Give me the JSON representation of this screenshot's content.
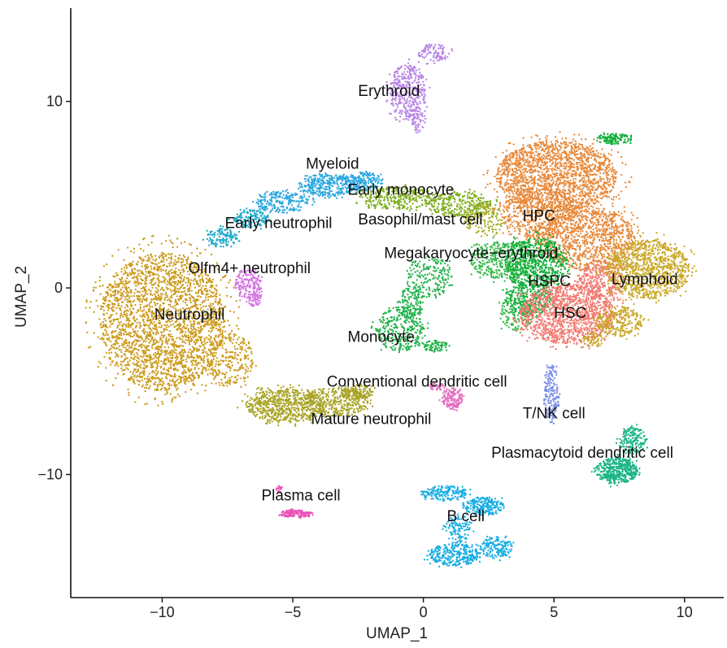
{
  "chart_data": {
    "type": "scatter",
    "title": "",
    "xlabel": "UMAP_1",
    "ylabel": "UMAP_2",
    "xlim": [
      -13.5,
      11.5
    ],
    "ylim": [
      -16.6,
      15.0
    ],
    "xticks": [
      -10,
      -5,
      0,
      5,
      10
    ],
    "xtick_labels": [
      "−10",
      "−5",
      "0",
      "5",
      "10"
    ],
    "yticks": [
      -10,
      0,
      10
    ],
    "ytick_labels": [
      "−10",
      "0",
      "10"
    ],
    "grid": false,
    "legend": "none",
    "clusters": [
      {
        "label": "Neutrophil",
        "color": "#CC9A1C",
        "label_x": -10.3,
        "label_y": -1.7,
        "regions": [
          {
            "cx": -10.0,
            "cy": -1.8,
            "rx": 2.4,
            "ry": 3.7,
            "n": 2600
          },
          {
            "cx": -7.4,
            "cy": -3.8,
            "rx": 0.9,
            "ry": 1.5,
            "n": 260
          }
        ]
      },
      {
        "label": "Mature neutrophil",
        "color": "#A9A427",
        "label_x": -4.3,
        "label_y": -7.3,
        "regions": [
          {
            "cx": -5.3,
            "cy": -6.3,
            "rx": 1.5,
            "ry": 0.9,
            "n": 650
          },
          {
            "cx": -3.3,
            "cy": -6.1,
            "rx": 1.2,
            "ry": 0.8,
            "n": 400
          },
          {
            "cx": -2.5,
            "cy": -5.6,
            "rx": 0.6,
            "ry": 0.4,
            "n": 120
          }
        ]
      },
      {
        "label": "Early neutrophil",
        "color": "#1FA9C9",
        "label_x": -7.6,
        "label_y": 3.2,
        "regions": [
          {
            "cx": -7.7,
            "cy": 2.7,
            "rx": 0.6,
            "ry": 0.5,
            "n": 120
          },
          {
            "cx": -6.6,
            "cy": 3.7,
            "rx": 0.7,
            "ry": 0.5,
            "n": 160
          }
        ]
      },
      {
        "label": "Myeloid",
        "color": "#2AA7E0",
        "label_x": -4.5,
        "label_y": 6.4,
        "regions": [
          {
            "cx": -5.4,
            "cy": 4.6,
            "rx": 1.0,
            "ry": 0.6,
            "n": 220
          },
          {
            "cx": -3.7,
            "cy": 5.5,
            "rx": 1.1,
            "ry": 0.6,
            "n": 320
          },
          {
            "cx": -2.3,
            "cy": 5.7,
            "rx": 0.8,
            "ry": 0.5,
            "n": 200
          }
        ]
      },
      {
        "label": "Erythroid",
        "color": "#B784E6",
        "label_x": -2.5,
        "label_y": 10.3,
        "regions": [
          {
            "cx": -0.6,
            "cy": 10.5,
            "rx": 0.7,
            "ry": 1.5,
            "n": 380
          },
          {
            "cx": 0.4,
            "cy": 12.6,
            "rx": 0.6,
            "ry": 0.5,
            "n": 100
          },
          {
            "cx": -0.2,
            "cy": 9.0,
            "rx": 0.3,
            "ry": 0.7,
            "n": 60
          }
        ]
      },
      {
        "label": "Early monocyte",
        "color": "#7DAE1B",
        "label_x": -2.9,
        "label_y": 5.0,
        "regions": [
          {
            "cx": -1.0,
            "cy": 4.8,
            "rx": 1.4,
            "ry": 0.6,
            "n": 300
          },
          {
            "cx": 1.4,
            "cy": 4.5,
            "rx": 1.2,
            "ry": 0.7,
            "n": 280
          }
        ]
      },
      {
        "label": "Basophil/mast cell",
        "color": "#A4AB22",
        "label_x": -2.5,
        "label_y": 3.4,
        "regions": [
          {
            "cx": 2.3,
            "cy": 3.7,
            "rx": 0.8,
            "ry": 0.8,
            "n": 160
          }
        ]
      },
      {
        "label": "Megakaryocyte−erythroid",
        "color": "#37B94A",
        "label_x": -1.5,
        "label_y": 1.6,
        "regions": [
          {
            "cx": 3.0,
            "cy": 1.5,
            "rx": 1.2,
            "ry": 1.0,
            "n": 400
          },
          {
            "cx": 3.6,
            "cy": -1.3,
            "rx": 0.7,
            "ry": 1.0,
            "n": 150
          }
        ]
      },
      {
        "label": "Monocyte",
        "color": "#22B24B",
        "label_x": -2.9,
        "label_y": -2.9,
        "regions": [
          {
            "cx": -0.9,
            "cy": -2.2,
            "rx": 0.9,
            "ry": 1.2,
            "n": 320
          },
          {
            "cx": 0.2,
            "cy": 0.6,
            "rx": 0.9,
            "ry": 1.1,
            "n": 200
          },
          {
            "cx": -0.5,
            "cy": -0.8,
            "rx": 0.5,
            "ry": 0.8,
            "n": 120
          },
          {
            "cx": 0.5,
            "cy": -3.1,
            "rx": 0.5,
            "ry": 0.3,
            "n": 80
          }
        ]
      },
      {
        "label": "HPC",
        "color": "#E8893A",
        "label_x": 3.8,
        "label_y": 3.6,
        "regions": [
          {
            "cx": 5.1,
            "cy": 6.0,
            "rx": 2.3,
            "ry": 1.9,
            "n": 1800
          },
          {
            "cx": 6.2,
            "cy": 2.7,
            "rx": 1.9,
            "ry": 1.7,
            "n": 1100
          },
          {
            "cx": 4.4,
            "cy": 4.0,
            "rx": 1.4,
            "ry": 1.4,
            "n": 500
          }
        ]
      },
      {
        "label": "HSPC",
        "color": "#12AE3A",
        "label_x": 4.0,
        "label_y": 0.1,
        "regions": [
          {
            "cx": 4.3,
            "cy": 1.3,
            "rx": 1.2,
            "ry": 1.4,
            "n": 650
          },
          {
            "cx": 4.0,
            "cy": -0.6,
            "rx": 0.9,
            "ry": 0.9,
            "n": 260
          },
          {
            "cx": 7.3,
            "cy": 8.0,
            "rx": 0.7,
            "ry": 0.3,
            "n": 120
          }
        ]
      },
      {
        "label": "HSC",
        "color": "#F27A70",
        "label_x": 5.0,
        "label_y": -1.6,
        "regions": [
          {
            "cx": 5.5,
            "cy": -1.4,
            "rx": 1.8,
            "ry": 1.6,
            "n": 1300
          },
          {
            "cx": 6.8,
            "cy": 0.4,
            "rx": 0.9,
            "ry": 1.0,
            "n": 300
          }
        ]
      },
      {
        "label": "Lymphoid",
        "color": "#C9A826",
        "label_x": 7.2,
        "label_y": 0.2,
        "regions": [
          {
            "cx": 8.6,
            "cy": 1.0,
            "rx": 1.6,
            "ry": 1.6,
            "n": 1000
          },
          {
            "cx": 7.5,
            "cy": -1.8,
            "rx": 0.9,
            "ry": 0.8,
            "n": 260
          },
          {
            "cx": 6.5,
            "cy": -2.8,
            "rx": 0.4,
            "ry": 0.4,
            "n": 60
          }
        ]
      },
      {
        "label": "Olfm4+ neutrophil",
        "color": "#D374E0",
        "label_x": -9.0,
        "label_y": 0.8,
        "regions": [
          {
            "cx": -6.7,
            "cy": 0.2,
            "rx": 0.5,
            "ry": 0.8,
            "n": 170
          },
          {
            "cx": -6.5,
            "cy": -0.6,
            "rx": 0.3,
            "ry": 0.4,
            "n": 60
          }
        ]
      },
      {
        "label": "Conventional dendritic cell",
        "color": "#E66FC2",
        "label_x": -3.7,
        "label_y": -5.3,
        "regions": [
          {
            "cx": 1.1,
            "cy": -5.9,
            "rx": 0.4,
            "ry": 0.6,
            "n": 160
          },
          {
            "cx": 0.5,
            "cy": -5.3,
            "rx": 0.3,
            "ry": 0.2,
            "n": 40
          }
        ]
      },
      {
        "label": "T/NK cell",
        "color": "#7B8FE8",
        "label_x": 3.8,
        "label_y": -7.0,
        "regions": [
          {
            "cx": 4.9,
            "cy": -6.0,
            "rx": 0.3,
            "ry": 1.1,
            "n": 150
          },
          {
            "cx": 4.9,
            "cy": -4.6,
            "rx": 0.2,
            "ry": 0.5,
            "n": 40
          }
        ]
      },
      {
        "label": "Plasmacytoid dendritic cell",
        "color": "#1BB585",
        "label_x": 2.6,
        "label_y": -9.1,
        "regions": [
          {
            "cx": 7.4,
            "cy": -9.8,
            "rx": 0.8,
            "ry": 0.7,
            "n": 450
          },
          {
            "cx": 8.0,
            "cy": -8.2,
            "rx": 0.5,
            "ry": 0.8,
            "n": 170
          }
        ]
      },
      {
        "label": "Plasma cell",
        "color": "#E94FB6",
        "label_x": -6.2,
        "label_y": -11.4,
        "regions": [
          {
            "cx": -4.9,
            "cy": -12.1,
            "rx": 0.6,
            "ry": 0.2,
            "n": 140
          },
          {
            "cx": -5.5,
            "cy": -10.8,
            "rx": 0.15,
            "ry": 0.2,
            "n": 20
          }
        ]
      },
      {
        "label": "B cell",
        "color": "#17ADE3",
        "label_x": 0.9,
        "label_y": -12.5,
        "regions": [
          {
            "cx": 0.8,
            "cy": -11.0,
            "rx": 0.9,
            "ry": 0.4,
            "n": 180
          },
          {
            "cx": 2.3,
            "cy": -11.7,
            "rx": 0.8,
            "ry": 0.5,
            "n": 220
          },
          {
            "cx": 1.2,
            "cy": -14.3,
            "rx": 1.0,
            "ry": 0.6,
            "n": 300
          },
          {
            "cx": 2.8,
            "cy": -13.9,
            "rx": 0.6,
            "ry": 0.6,
            "n": 160
          },
          {
            "cx": 1.3,
            "cy": -13.0,
            "rx": 0.5,
            "ry": 0.7,
            "n": 120
          }
        ]
      }
    ]
  }
}
